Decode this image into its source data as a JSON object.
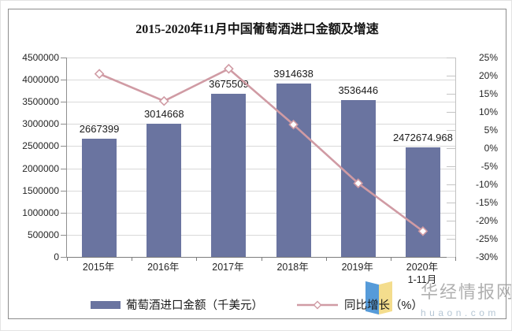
{
  "title": "2015-2020年11月中国葡萄酒进口金额及增速",
  "watermark": {
    "name": "华经情报网",
    "domain": "huaon.com"
  },
  "colors": {
    "bar": "#6a74a0",
    "line": "#d09ba4",
    "grid": "#d9d9d9",
    "axis": "#8f8f8f"
  },
  "chart_data": {
    "type": "bar",
    "combo": "bar+line",
    "title": "2015-2020年11月中国葡萄酒进口金额及增速",
    "categories": [
      "2015年",
      "2016年",
      "2017年",
      "2018年",
      "2019年",
      "2020年\n1-11月"
    ],
    "series": [
      {
        "name": "葡萄酒进口金额（千美元）",
        "type": "bar",
        "axis": "left",
        "color": "#6a74a0",
        "values": [
          2667399,
          3014668,
          3675509,
          3914638,
          3536446,
          2472674.968
        ],
        "labels": [
          "2667399",
          "3014668",
          "3675509",
          "3914638",
          "3536446",
          "2472674.968"
        ]
      },
      {
        "name": "同比增长（%）",
        "type": "line",
        "axis": "right",
        "color": "#d09ba4",
        "marker": "diamond-white",
        "values": [
          20.5,
          13.0,
          21.9,
          6.5,
          -9.7,
          -22.9
        ]
      }
    ],
    "left_axis": {
      "min": 0,
      "max": 4500000,
      "step": 500000,
      "ticks": [
        "4500000",
        "4000000",
        "3500000",
        "3000000",
        "2500000",
        "2000000",
        "1500000",
        "1000000",
        "500000",
        "0"
      ]
    },
    "right_axis": {
      "min": -30,
      "max": 25,
      "step": 5,
      "ticks": [
        "25%",
        "20%",
        "15%",
        "10%",
        "5%",
        "0%",
        "-5%",
        "-10%",
        "-15%",
        "-20%",
        "-25%",
        "-30%"
      ]
    },
    "grid": true,
    "legend_position": "bottom"
  }
}
